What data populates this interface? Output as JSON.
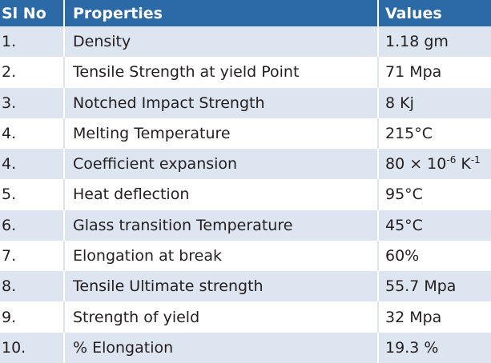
{
  "table": {
    "header": [
      "Sl No",
      "Properties",
      "Values"
    ],
    "rows": [
      [
        "1.",
        "Density",
        "1.18 gm"
      ],
      [
        "2.",
        "Tensile Strength at yield Point",
        "71 Mpa"
      ],
      [
        "3.",
        "Notched Impact Strength",
        "8 Kj"
      ],
      [
        "4.",
        "Melting Temperature",
        "215°C"
      ],
      [
        "4.",
        "Coefficient expansion",
        [
          {
            "text": "80 × 10"
          },
          {
            "text": "-6",
            "sup": true
          },
          {
            "text": " K"
          },
          {
            "text": "-1",
            "sup": true
          }
        ]
      ],
      [
        "5.",
        "Heat deflection",
        "95°C"
      ],
      [
        "6.",
        "Glass transition Temperature",
        "45°C"
      ],
      [
        "7.",
        "Elongation at break",
        "60%"
      ],
      [
        "8.",
        "Tensile Ultimate strength",
        "55.7 Mpa"
      ],
      [
        "9.",
        "Strength of yield",
        "32 Mpa"
      ],
      [
        "10.",
        "% Elongation",
        "19.3 %"
      ]
    ]
  }
}
